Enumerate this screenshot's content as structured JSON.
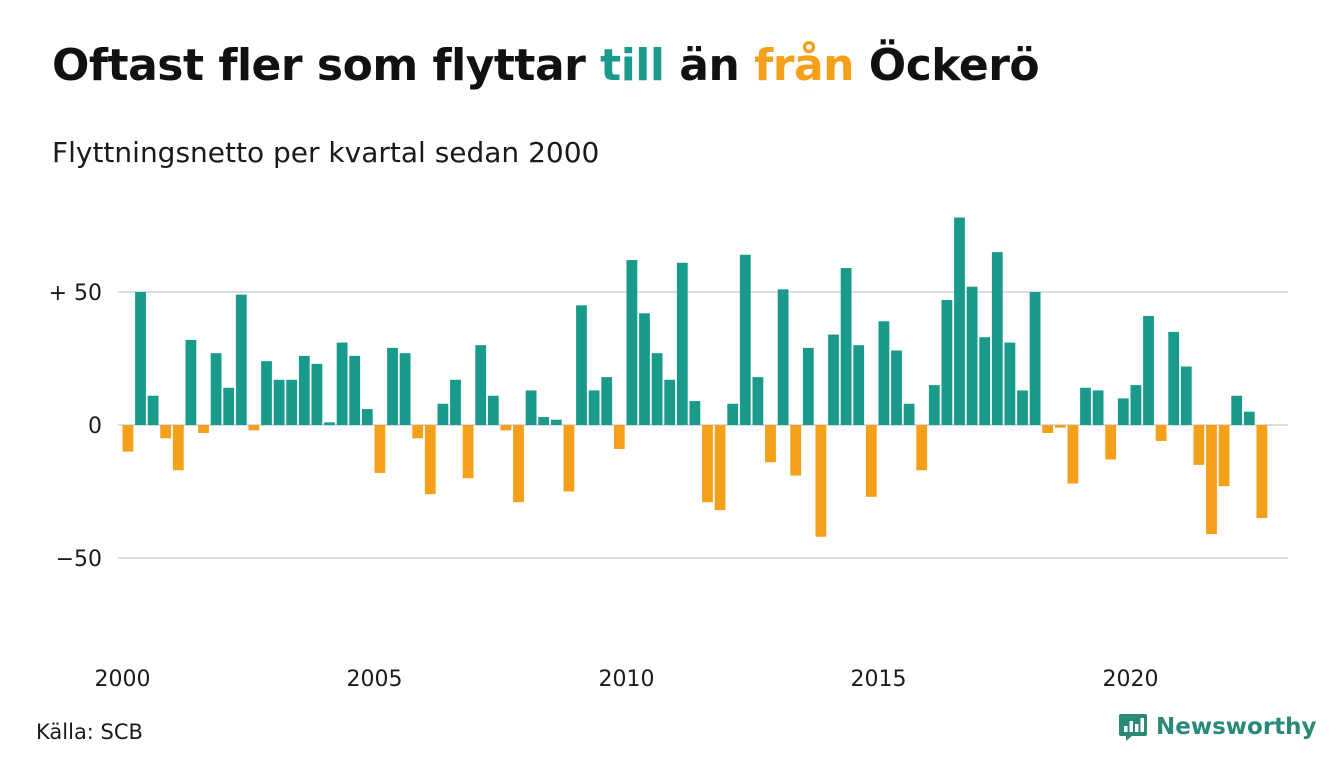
{
  "title": {
    "part1": "Oftast fler som flyttar ",
    "to_word": "till",
    "part2": " än ",
    "from_word": "från",
    "part3": " Öckerö"
  },
  "subtitle": "Flyttningsnetto per kvartal sedan 2000",
  "source": "Källa: SCB",
  "brand": "Newsworthy",
  "colors": {
    "positive": "#1a9a8a",
    "negative": "#f5a01a",
    "grid": "#dddddd",
    "brand": "#2a8a78"
  },
  "chart_data": {
    "type": "bar",
    "start": "2000 Q1",
    "frequency": "quarterly",
    "ylim": [
      -75,
      80
    ],
    "yticks": [
      {
        "value": 50,
        "label": "+ 50"
      },
      {
        "value": 0,
        "label": "0"
      },
      {
        "value": -50,
        "label": "−50"
      }
    ],
    "xticks": [
      "2000",
      "2005",
      "2010",
      "2015",
      "2020"
    ],
    "grid": true,
    "values": [
      -10,
      50,
      11,
      -5,
      -17,
      32,
      -3,
      27,
      14,
      49,
      -2,
      24,
      17,
      17,
      26,
      23,
      1,
      31,
      26,
      6,
      -18,
      29,
      27,
      -5,
      -26,
      8,
      17,
      -20,
      30,
      11,
      -2,
      -29,
      13,
      3,
      2,
      -25,
      45,
      13,
      18,
      -9,
      62,
      42,
      27,
      17,
      61,
      9,
      -29,
      -32,
      8,
      64,
      18,
      -14,
      51,
      -19,
      29,
      -42,
      34,
      59,
      30,
      -27,
      39,
      28,
      8,
      -17,
      15,
      47,
      78,
      52,
      33,
      65,
      31,
      13,
      50,
      -3,
      -1,
      -22,
      14,
      13,
      -13,
      10,
      15,
      41,
      -6,
      35,
      22,
      -15,
      -41,
      -23,
      11,
      5,
      -35
    ]
  }
}
